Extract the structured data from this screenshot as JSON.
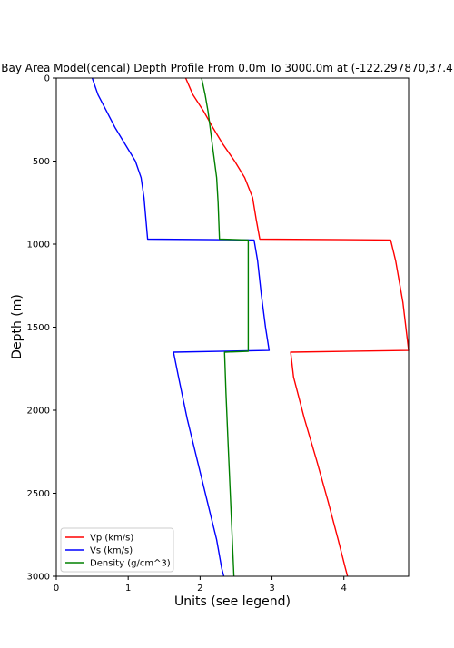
{
  "chart_data": {
    "type": "line",
    "title": "Bay Area Model(cencal) Depth Profile From 0.0m To 3000.0m at (-122.297870,37.4",
    "xlabel": "Units (see legend)",
    "ylabel": "Depth (m)",
    "xlim": [
      0,
      4.9
    ],
    "ylim": [
      3000,
      0
    ],
    "y_inverted": true,
    "xticks": [
      "0",
      "1",
      "2",
      "3",
      "4"
    ],
    "yticks": [
      "0",
      "500",
      "1000",
      "1500",
      "2000",
      "2500",
      "3000"
    ],
    "legend_position": "lower-left",
    "series": [
      {
        "name": "Vp (km/s)",
        "color": "#ff0000",
        "x": [
          1.8,
          1.9,
          2.05,
          2.18,
          2.32,
          2.48,
          2.62,
          2.73,
          2.78,
          2.83,
          4.65,
          4.72,
          4.82,
          4.9,
          3.26,
          3.3,
          3.45,
          3.62,
          3.78,
          3.92,
          4.02,
          4.05
        ],
        "y": [
          0,
          100,
          200,
          300,
          400,
          500,
          600,
          720,
          850,
          970,
          975,
          1100,
          1350,
          1640,
          1650,
          1800,
          2050,
          2300,
          2550,
          2780,
          2950,
          3000
        ]
      },
      {
        "name": "Vs (km/s)",
        "color": "#0000ff",
        "x": [
          0.5,
          0.58,
          0.7,
          0.82,
          0.96,
          1.1,
          1.18,
          1.22,
          1.27,
          2.75,
          2.8,
          2.85,
          2.91,
          2.96,
          1.63,
          1.7,
          1.82,
          1.96,
          2.1,
          2.23,
          2.3,
          2.33
        ],
        "y": [
          0,
          100,
          200,
          300,
          400,
          500,
          600,
          720,
          970,
          975,
          1100,
          1300,
          1500,
          1640,
          1650,
          1800,
          2050,
          2300,
          2550,
          2780,
          2950,
          3000
        ]
      },
      {
        "name": "Density (g/cm^3)",
        "color": "#008000",
        "x": [
          2.02,
          2.07,
          2.11,
          2.14,
          2.17,
          2.2,
          2.23,
          2.25,
          2.27,
          2.67,
          2.67,
          2.67,
          2.34,
          2.36,
          2.39,
          2.42,
          2.45,
          2.47
        ],
        "y": [
          0,
          100,
          200,
          300,
          400,
          500,
          600,
          750,
          970,
          975,
          1300,
          1645,
          1650,
          1900,
          2200,
          2500,
          2800,
          3000
        ]
      }
    ]
  }
}
